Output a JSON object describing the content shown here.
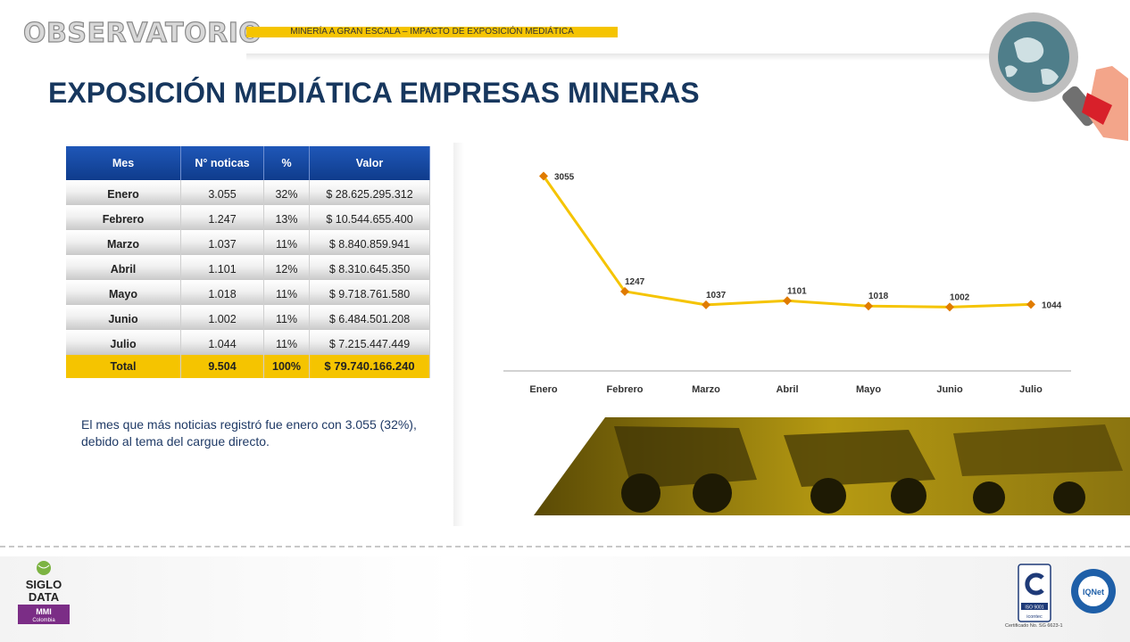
{
  "header": {
    "brand": "OBSERVATORIO",
    "subtitle": "MINERÍA A GRAN ESCALA – IMPACTO DE EXPOSICIÓN MEDIÁTICA",
    "title": "EXPOSICIÓN MEDIÁTICA EMPRESAS MINERAS"
  },
  "table": {
    "headers": [
      "Mes",
      "N° noticas",
      "%",
      "Valor"
    ],
    "rows": [
      [
        "Enero",
        "3.055",
        "32%",
        "$ 28.625.295.312"
      ],
      [
        "Febrero",
        "1.247",
        "13%",
        "$ 10.544.655.400"
      ],
      [
        "Marzo",
        "1.037",
        "11%",
        "$ 8.840.859.941"
      ],
      [
        "Abril",
        "1.101",
        "12%",
        "$ 8.310.645.350"
      ],
      [
        "Mayo",
        "1.018",
        "11%",
        "$ 9.718.761.580"
      ],
      [
        "Junio",
        "1.002",
        "11%",
        "$ 6.484.501.208"
      ],
      [
        "Julio",
        "1.044",
        "11%",
        "$ 7.215.447.449"
      ]
    ],
    "total": [
      "Total",
      "9.504",
      "100%",
      "$ 79.740.166.240"
    ]
  },
  "note": "El mes que más noticias registró fue enero con 3.055 (32%), debido al tema del cargue directo.",
  "chart_data": {
    "type": "line",
    "categories": [
      "Enero",
      "Febrero",
      "Marzo",
      "Abril",
      "Mayo",
      "Junio",
      "Julio"
    ],
    "values": [
      3055,
      1247,
      1037,
      1101,
      1018,
      1002,
      1044
    ],
    "ylim": [
      0,
      3300
    ],
    "grid": false,
    "legend": "none",
    "colors": {
      "line": "#f5c400",
      "marker": "#e07b00"
    }
  },
  "footer": {
    "logo_left": {
      "line1": "SIGLO",
      "line2": "DATA",
      "badge1": "MMI",
      "badge2": "Colombia"
    },
    "iso_label": "ISO 9001",
    "iso_brand": "icontec",
    "iqnet_label": "IQNet",
    "cert": "Certificado No. SG 6623-1"
  }
}
